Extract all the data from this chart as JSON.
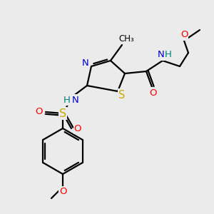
{
  "background_color": "#ebebeb",
  "atoms": {
    "colors": {
      "C": "#000000",
      "N": "#0000cc",
      "O": "#ff0000",
      "S": "#ccaa00",
      "H": "#008080"
    }
  },
  "bond_color": "#000000",
  "lw": 1.6,
  "fs": 9.5
}
